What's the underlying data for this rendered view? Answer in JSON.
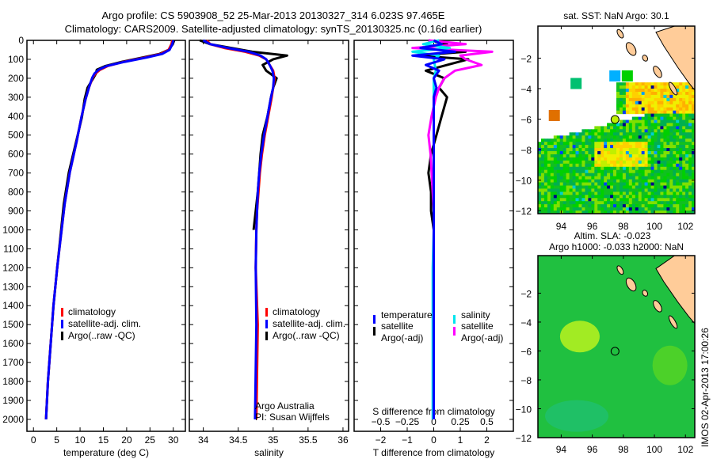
{
  "header": {
    "line1": "Argo profile: CS 5903908_52 25-Mar-2013 20130327_314 6.023S 97.465E",
    "line2": "Climatology: CARS2009. Satellite-adjusted climatology: synTS_20130325.nc (0.16d earlier)"
  },
  "credit": {
    "line1": "Argo Australia",
    "line2": "PI: Susan Wijffels"
  },
  "timestamp": "IMOS 02-Apr-2013 17:00:26",
  "colors": {
    "climatology": "#ff0000",
    "satellite": "#0000ff",
    "argo": "#000000",
    "sal_satellite": "#00e5ee",
    "sal_argo": "#ff00ff",
    "land": "#ffcc99"
  },
  "chart_data": [
    {
      "type": "line",
      "id": "temperature",
      "xlabel": "temperature (deg C)",
      "xlim": [
        -1.4,
        32.6
      ],
      "ylim": [
        0,
        2063
      ],
      "xticks": [
        0,
        5,
        10,
        15,
        20,
        25,
        30
      ],
      "yticks": [
        0,
        100,
        200,
        300,
        400,
        500,
        600,
        700,
        800,
        900,
        1000,
        1100,
        1200,
        1300,
        1400,
        1500,
        1600,
        1700,
        1800,
        1900,
        2000
      ],
      "depth": [
        0,
        20,
        50,
        72,
        90,
        113,
        135,
        155,
        175,
        197,
        250,
        309,
        405,
        530,
        697,
        864,
        1031,
        1200,
        1400,
        1600,
        1800,
        2000
      ],
      "series": [
        {
          "name": "climatology",
          "color": "#ff0000",
          "values": [
            29.8,
            29.6,
            29.0,
            27.3,
            24.0,
            19.4,
            16.0,
            14.3,
            13.3,
            12.7,
            11.9,
            11.2,
            10.3,
            9.3,
            7.8,
            6.7,
            5.9,
            5.1,
            4.3,
            3.7,
            3.1,
            2.7
          ]
        },
        {
          "name": "satellite-adj. clim.",
          "color": "#0000ff",
          "values": [
            30.0,
            29.8,
            29.2,
            27.6,
            24.3,
            19.6,
            15.8,
            14.0,
            13.1,
            12.6,
            11.9,
            11.2,
            10.3,
            9.3,
            7.8,
            6.7,
            5.9,
            5.1,
            4.3,
            3.7,
            3.1,
            2.7
          ]
        },
        {
          "name": "Argo(..raw -QC)",
          "color": "#000000",
          "values": [
            30.2,
            29.9,
            29.0,
            27.0,
            23.5,
            19.0,
            15.5,
            13.6,
            13.4,
            12.9,
            11.6,
            11.0,
            10.4,
            9.2,
            7.6,
            6.5,
            5.8,
            5.1,
            4.3,
            3.7,
            3.1,
            2.7
          ]
        }
      ]
    },
    {
      "type": "line",
      "id": "salinity",
      "xlabel": "salinity",
      "xlim": [
        33.8,
        36.08
      ],
      "ylim": [
        0,
        2063
      ],
      "xticks": [
        34,
        34.5,
        35,
        35.5,
        36
      ],
      "depth": [
        0,
        20,
        40,
        60,
        80,
        100,
        130,
        160,
        200,
        250,
        300,
        400,
        500,
        600,
        700,
        800,
        900,
        1000,
        1200,
        1500,
        2000
      ],
      "series": [
        {
          "name": "climatology",
          "color": "#ff0000",
          "values": [
            34.05,
            34.1,
            34.3,
            34.6,
            34.8,
            34.9,
            34.95,
            35.0,
            35.02,
            35.0,
            34.98,
            34.93,
            34.88,
            34.84,
            34.81,
            34.79,
            34.77,
            34.76,
            34.75,
            34.78,
            34.76
          ]
        },
        {
          "name": "satellite-adj. clim.",
          "color": "#0000ff",
          "values": [
            34.0,
            34.1,
            34.35,
            34.65,
            34.82,
            34.9,
            34.95,
            34.99,
            35.01,
            35.0,
            34.97,
            34.92,
            34.87,
            34.83,
            34.8,
            34.78,
            34.77,
            34.76,
            34.75,
            34.76,
            34.74
          ]
        },
        {
          "name": "Argo(..raw -QC)",
          "color": "#000000",
          "values": [
            33.95,
            34.1,
            34.4,
            34.7,
            35.2,
            35.0,
            34.85,
            34.9,
            35.05,
            35.0,
            34.97,
            34.92,
            34.85,
            34.82,
            34.8,
            34.78,
            34.75,
            34.72,
            null,
            null,
            null
          ]
        }
      ]
    },
    {
      "type": "line",
      "id": "difference",
      "xlabel": "T difference from climatology",
      "xlabel2": "S difference from climatology",
      "xlim": [
        -3,
        3
      ],
      "xlim2": [
        -0.75,
        0.75
      ],
      "ylim": [
        0,
        2063
      ],
      "xticks": [
        -2,
        -1,
        0,
        1,
        2
      ],
      "xticks2": [
        -0.5,
        -0.25,
        0,
        0.25,
        0.5
      ],
      "legend_titles": [
        "temperature",
        "salinity"
      ],
      "depth": [
        0,
        20,
        40,
        60,
        80,
        100,
        130,
        160,
        200,
        250,
        300,
        400,
        500,
        600,
        700,
        800,
        900,
        1000,
        1200,
        1500,
        2000
      ],
      "series": [
        {
          "name": "satellite",
          "group": "temperature",
          "axis": "T",
          "color": "#0000ff",
          "values": [
            0,
            0.3,
            -0.5,
            0.8,
            -0.8,
            0.4,
            -0.3,
            0.2,
            0,
            0.1,
            0,
            0,
            0,
            0,
            0,
            0,
            0,
            0,
            0,
            0,
            0
          ]
        },
        {
          "name": "Argo(-adj)",
          "group": "temperature",
          "axis": "T",
          "color": "#000000",
          "values": [
            -0.2,
            0.5,
            -0.6,
            1.2,
            -0.7,
            1.3,
            0.5,
            -0.3,
            0.4,
            0.2,
            0.5,
            0.3,
            0.1,
            -0.1,
            -0.2,
            -0.1,
            -0.1,
            0,
            null,
            null,
            null
          ]
        },
        {
          "name": "satellite",
          "group": "salinity",
          "axis": "S",
          "color": "#00e5ee",
          "values": [
            0.05,
            -0.1,
            0.15,
            -0.2,
            0.05,
            0,
            0.01,
            0.02,
            0,
            0,
            0,
            0,
            0,
            0,
            0,
            0,
            0,
            0,
            -0.01,
            -0.01,
            -0.01
          ]
        },
        {
          "name": "Argo(-adj)",
          "group": "salinity",
          "axis": "S",
          "color": "#ff00ff",
          "values": [
            -0.05,
            0.3,
            -0.2,
            0.55,
            0.25,
            0.3,
            0.45,
            0.2,
            0.1,
            0.05,
            0.02,
            -0.02,
            -0.05,
            -0.03,
            -0.02,
            -0.01,
            0,
            0,
            null,
            null,
            null
          ]
        }
      ]
    },
    {
      "type": "heatmap",
      "id": "sst-map",
      "title": "sat. SST: NaN Argo: 30.1",
      "xlim": [
        92.5,
        102.6
      ],
      "ylim": [
        -12.2,
        0.1
      ],
      "xticks": [
        94,
        96,
        98,
        100,
        102
      ],
      "yticks": [
        -2,
        -4,
        -6,
        -8,
        -10,
        -12
      ],
      "argo_position": {
        "lat": -6.023,
        "lon": 97.465
      }
    },
    {
      "type": "heatmap",
      "id": "sla-map",
      "title": "Altim. SLA: -0.023",
      "subtitle": "Argo h1000: -0.033 h2000: NaN",
      "xlim": [
        92.5,
        102.6
      ],
      "ylim": [
        -12.0,
        0.6
      ],
      "xticks": [
        94,
        96,
        98,
        100,
        102
      ],
      "yticks": [
        -2,
        -4,
        -6,
        -8,
        -10,
        -12
      ],
      "argo_position": {
        "lat": -6.023,
        "lon": 97.465
      }
    }
  ]
}
